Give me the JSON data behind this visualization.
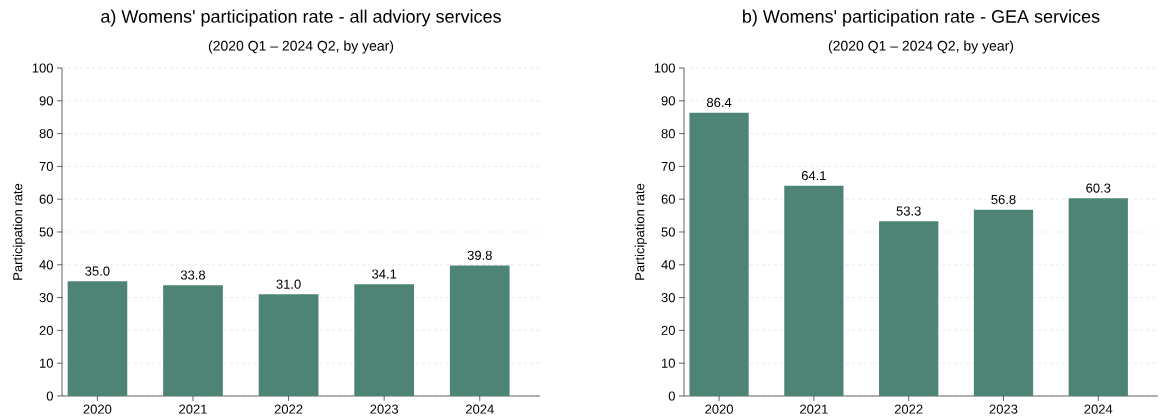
{
  "chart_data": [
    {
      "type": "bar",
      "title": "a) Womens' participation rate - all adviory services",
      "subtitle": "(2020 Q1 – 2024 Q2, by year)",
      "ylabel": "Participation rate",
      "categories": [
        "2020",
        "2021",
        "2022",
        "2023",
        "2024"
      ],
      "values": [
        35.0,
        33.8,
        31.0,
        34.1,
        39.8
      ],
      "value_labels": [
        "35.0",
        "33.8",
        "31.0",
        "34.1",
        "39.8"
      ],
      "color": "#4e8476",
      "ylim": [
        0,
        100
      ],
      "yticks": [
        0,
        10,
        20,
        30,
        40,
        50,
        60,
        70,
        80,
        90,
        100
      ],
      "grid": "y"
    },
    {
      "type": "bar",
      "title": "b) Womens' participation rate - GEA services",
      "subtitle": "(2020 Q1 – 2024 Q2, by year)",
      "ylabel": "Participation rate",
      "categories": [
        "2020",
        "2021",
        "2022",
        "2023",
        "2024"
      ],
      "values": [
        86.4,
        64.1,
        53.3,
        56.8,
        60.3
      ],
      "value_labels": [
        "86.4",
        "64.1",
        "53.3",
        "56.8",
        "60.3"
      ],
      "color": "#4e8476",
      "ylim": [
        0,
        100
      ],
      "yticks": [
        0,
        10,
        20,
        30,
        40,
        50,
        60,
        70,
        80,
        90,
        100
      ],
      "grid": "y"
    }
  ]
}
